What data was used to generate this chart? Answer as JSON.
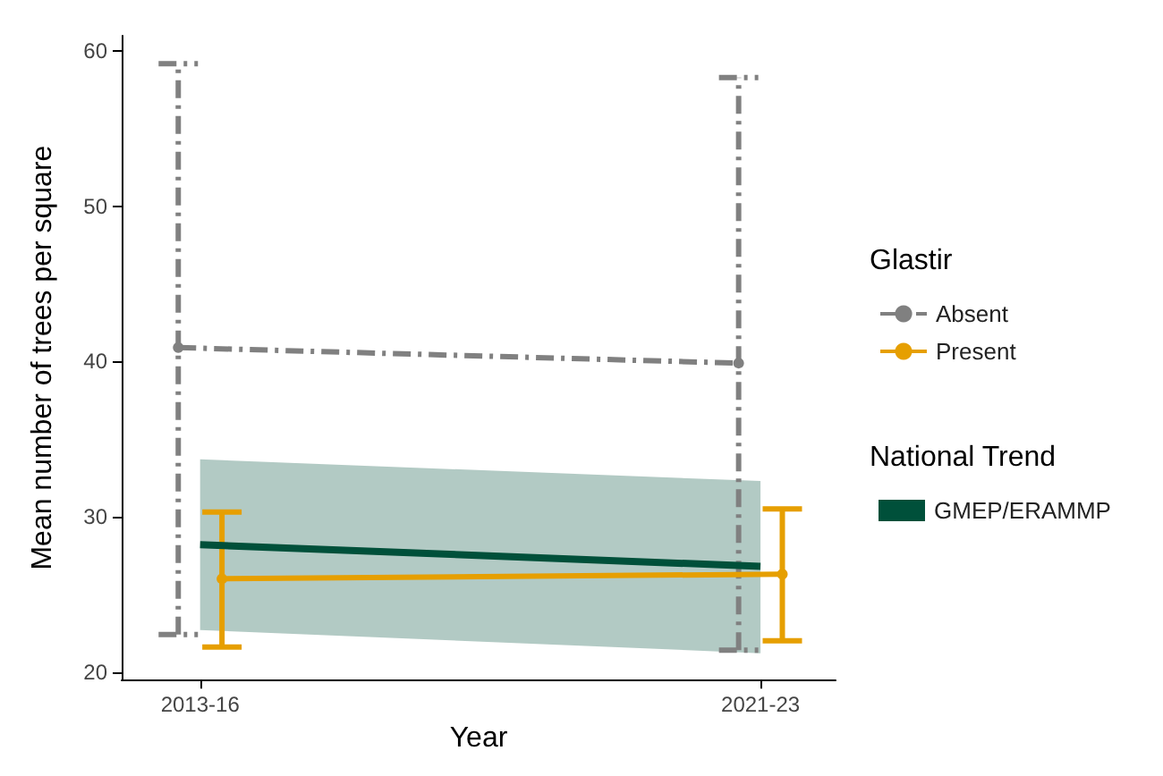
{
  "chart_data": {
    "type": "line",
    "xlabel": "Year",
    "ylabel": "Mean number of trees per square",
    "categories": [
      "2013-16",
      "2021-23"
    ],
    "ylim": [
      19.5,
      61
    ],
    "yticks": [
      20,
      30,
      40,
      50,
      60
    ],
    "grid": false,
    "legend": "right",
    "legend_title": [
      "Glastir",
      "National Trend"
    ],
    "series": [
      {
        "name": "Absent",
        "color": "#808080",
        "values": [
          40.9,
          39.9
        ],
        "errors": [
          [
            22.4,
            59.2
          ],
          [
            21.4,
            58.3
          ]
        ],
        "line_style": "dashed",
        "marker": "circle"
      },
      {
        "name": "Present",
        "color": "#e69f00",
        "values": [
          26.0,
          26.3
        ],
        "errors": [
          [
            21.6,
            30.3
          ],
          [
            22.0,
            30.5
          ]
        ],
        "line_style": "solid",
        "marker": "circle"
      },
      {
        "name": "GMEP/ERAMMP",
        "color": "#00503a",
        "values": [
          28.2,
          26.8
        ],
        "lower": [
          22.7,
          21.2
        ],
        "upper": [
          33.7,
          32.3
        ],
        "line_style": "solid",
        "marker": "none"
      }
    ]
  }
}
